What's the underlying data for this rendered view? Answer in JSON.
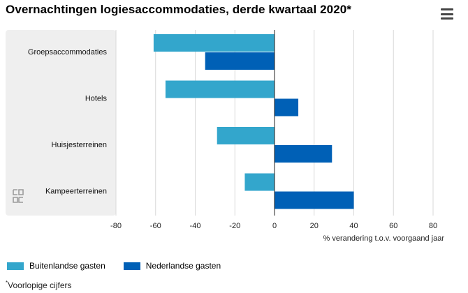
{
  "header": {
    "title": "Overnachtingen logiesaccommodaties, derde kwartaal 2020*"
  },
  "menu": {
    "icon": "hamburger-menu-icon"
  },
  "chart_data": {
    "type": "bar",
    "orientation": "horizontal",
    "categories": [
      "Groepsaccommodaties",
      "Hotels",
      "Huisjesterreinen",
      "Kampeerterreinen"
    ],
    "series": [
      {
        "name": "Buitenlandse gasten",
        "color": "#33a6cc",
        "values": [
          -61,
          -55,
          -29,
          -15
        ]
      },
      {
        "name": "Nederlandse gasten",
        "color": "#0060b6",
        "values": [
          -35,
          12,
          29,
          40
        ]
      }
    ],
    "xlim": [
      -80,
      80
    ],
    "xticks": [
      -80,
      -60,
      -40,
      -20,
      0,
      20,
      40,
      60,
      80
    ],
    "xlabel": "% verandering t.o.v. voorgaand jaar",
    "grid": true,
    "legend_position": "bottom-left"
  },
  "logo": {
    "icon": "cbs-logo-icon"
  },
  "footnote": {
    "marker": "*",
    "text": "Voorlopige cijfers"
  }
}
